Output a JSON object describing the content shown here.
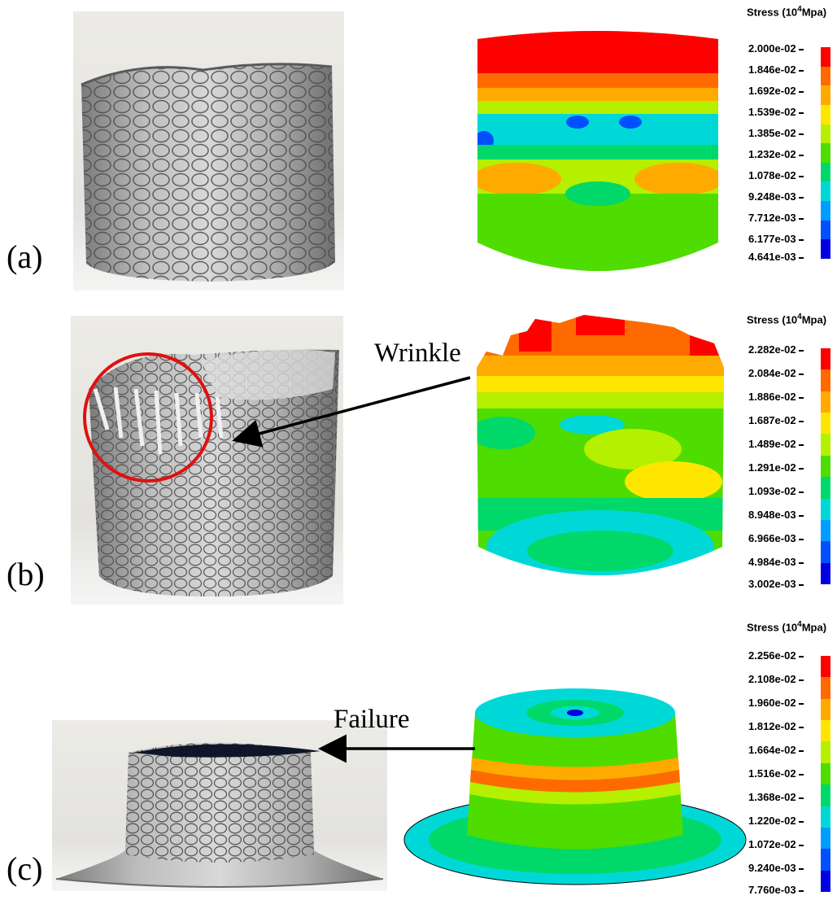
{
  "panels": [
    {
      "label": "(a)",
      "legend": {
        "title_prefix": "Stress (10",
        "title_exp": "4",
        "title_suffix": "Mpa)",
        "ticks": [
          "2.000e-02",
          "1.846e-02",
          "1.692e-02",
          "1.539e-02",
          "1.385e-02",
          "1.232e-02",
          "1.078e-02",
          "9.248e-03",
          "7.712e-03",
          "6.177e-03",
          "4.641e-03"
        ]
      }
    },
    {
      "label": "(b)",
      "annotation": "Wrinkle",
      "legend": {
        "title_prefix": "Stress (10",
        "title_exp": "4",
        "title_suffix": "Mpa)",
        "ticks": [
          "2.282e-02",
          "2.084e-02",
          "1.886e-02",
          "1.687e-02",
          "1.489e-02",
          "1.291e-02",
          "1.093e-02",
          "8.948e-03",
          "6.966e-03",
          "4.984e-03",
          "3.002e-03"
        ]
      }
    },
    {
      "label": "(c)",
      "annotation": "Failure",
      "legend": {
        "title_prefix": "Stress (10",
        "title_exp": "4",
        "title_suffix": "Mpa)",
        "ticks": [
          "2.256e-02",
          "2.108e-02",
          "1.960e-02",
          "1.812e-02",
          "1.664e-02",
          "1.516e-02",
          "1.368e-02",
          "1.220e-02",
          "1.072e-02",
          "9.240e-03",
          "7.760e-03"
        ]
      }
    }
  ],
  "colors": {
    "scale": [
      "#ff0000",
      "#ff6a00",
      "#ffaa00",
      "#ffe600",
      "#b4f000",
      "#4fdc00",
      "#00d86a",
      "#00d8d8",
      "#009cff",
      "#0050ff",
      "#0000e0"
    ],
    "annotation_circle": "#e01010",
    "metal": "#9c9c9c"
  }
}
